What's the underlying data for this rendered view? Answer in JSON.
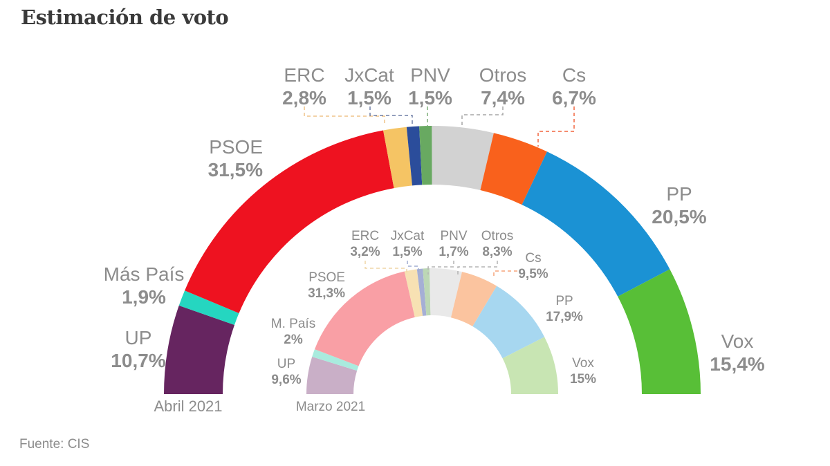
{
  "title": "Estimación de voto",
  "source": "Fuente: CIS",
  "chart_data": {
    "type": "half_donut_nested",
    "unit": "%",
    "legend_note": "outer ring = Abril 2021 (saturated colors), inner ring = Marzo 2021 (pastel colors)",
    "order_left_to_right": [
      "UP",
      "Más País",
      "PSOE",
      "ERC",
      "JxCat",
      "PNV",
      "Otros",
      "Cs",
      "PP",
      "Vox"
    ],
    "rings": [
      {
        "id": "outer",
        "period_label": "Abril 2021",
        "series": [
          {
            "party": "UP",
            "value": 10.7,
            "display": "10,7%",
            "color": "#662560"
          },
          {
            "party": "Más País",
            "value": 1.9,
            "display": "1,9%",
            "color": "#25D6C0"
          },
          {
            "party": "PSOE",
            "value": 31.5,
            "display": "31,5%",
            "color": "#EE1220"
          },
          {
            "party": "ERC",
            "value": 2.8,
            "display": "2,8%",
            "color": "#F5C464"
          },
          {
            "party": "JxCat",
            "value": 1.5,
            "display": "1,5%",
            "color": "#2B4D9B"
          },
          {
            "party": "PNV",
            "value": 1.5,
            "display": "1,5%",
            "color": "#68A961"
          },
          {
            "party": "Otros",
            "value": 7.4,
            "display": "7,4%",
            "color": "#D2D2D2"
          },
          {
            "party": "Cs",
            "value": 6.7,
            "display": "6,7%",
            "color": "#F9611C"
          },
          {
            "party": "PP",
            "value": 20.5,
            "display": "20,5%",
            "color": "#1B92D4"
          },
          {
            "party": "Vox",
            "value": 15.4,
            "display": "15,4%",
            "color": "#58BF37"
          }
        ]
      },
      {
        "id": "inner",
        "period_label": "Marzo 2021",
        "series": [
          {
            "party": "UP",
            "value": 9.6,
            "display": "9,6%",
            "color": "#C9AFC7"
          },
          {
            "party": "M. País",
            "value": 2.0,
            "display": "2%",
            "color": "#A9EBDE"
          },
          {
            "party": "PSOE",
            "value": 31.3,
            "display": "31,3%",
            "color": "#F99FA5"
          },
          {
            "party": "ERC",
            "value": 3.2,
            "display": "3,2%",
            "color": "#F7E1B3"
          },
          {
            "party": "JxCat",
            "value": 1.5,
            "display": "1,5%",
            "color": "#A5AFD5"
          },
          {
            "party": "PNV",
            "value": 1.7,
            "display": "1,7%",
            "color": "#BCD7B5"
          },
          {
            "party": "Otros",
            "value": 8.3,
            "display": "8,3%",
            "color": "#E9E9E9"
          },
          {
            "party": "Cs",
            "value": 9.5,
            "display": "9,5%",
            "color": "#FBC49F"
          },
          {
            "party": "PP",
            "value": 17.9,
            "display": "17,9%",
            "color": "#A7D7F0"
          },
          {
            "party": "Vox",
            "value": 15.0,
            "display": "15%",
            "color": "#C8E5B3"
          }
        ]
      }
    ]
  }
}
